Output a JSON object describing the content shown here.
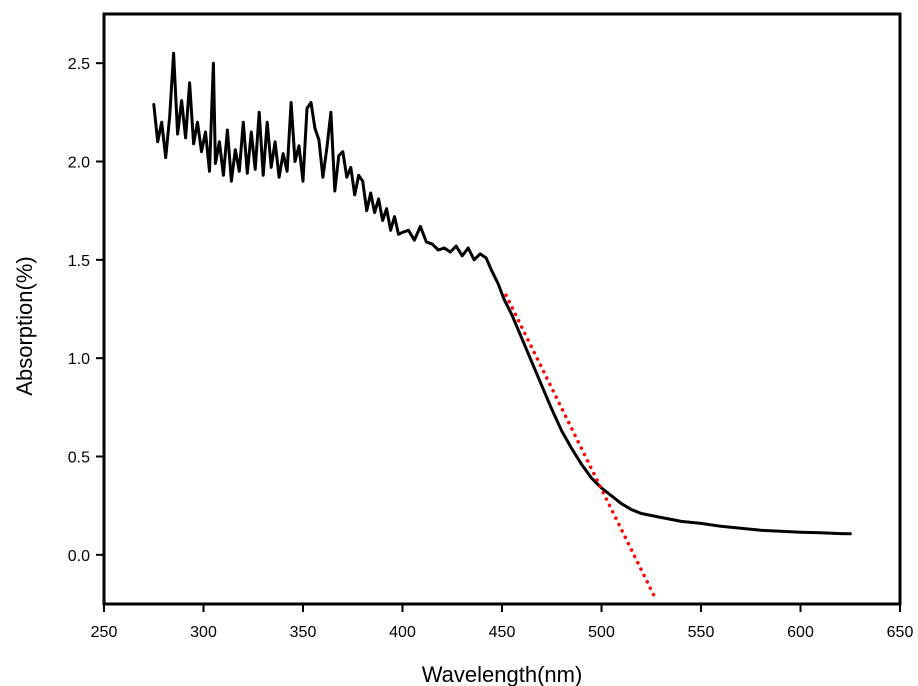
{
  "chart_data": {
    "type": "line",
    "title": "",
    "xlabel": "Wavelength(nm)",
    "ylabel": "Absorption(%)",
    "xlim": [
      250,
      650
    ],
    "ylim": [
      -0.25,
      2.75
    ],
    "x_ticks": [
      250,
      300,
      350,
      400,
      450,
      500,
      550,
      600,
      650
    ],
    "x_tick_labels": [
      "250",
      "300",
      "350",
      "400",
      "450",
      "500",
      "550",
      "600",
      "650"
    ],
    "y_ticks": [
      0.0,
      0.5,
      1.0,
      1.5,
      2.0,
      2.5
    ],
    "y_tick_labels": [
      "0.0",
      "0.5",
      "1.0",
      "1.5",
      "2.0",
      "2.5"
    ],
    "grid": false,
    "legend": "none",
    "series": [
      {
        "color": "#000000",
        "style": "solid",
        "x": [
          275,
          277,
          279,
          281,
          283,
          285,
          287,
          289,
          291,
          293,
          295,
          297,
          299,
          301,
          303,
          305,
          306,
          308,
          310,
          312,
          314,
          316,
          318,
          320,
          322,
          324,
          326,
          328,
          330,
          332,
          334,
          336,
          338,
          340,
          342,
          344,
          346,
          348,
          350,
          352,
          354,
          356,
          358,
          360,
          362,
          364,
          366,
          368,
          370,
          372,
          374,
          376,
          378,
          380,
          382,
          384,
          386,
          388,
          390,
          392,
          394,
          396,
          398,
          400,
          403,
          406,
          409,
          412,
          415,
          418,
          421,
          424,
          427,
          430,
          433,
          436,
          439,
          442,
          445,
          448,
          451,
          455,
          460,
          465,
          470,
          475,
          480,
          485,
          490,
          495,
          500,
          505,
          510,
          515,
          520,
          525,
          530,
          535,
          540,
          545,
          550,
          560,
          570,
          580,
          590,
          600,
          610,
          620,
          625
        ],
        "values": [
          2.29,
          2.1,
          2.2,
          2.02,
          2.23,
          2.55,
          2.14,
          2.31,
          2.12,
          2.4,
          2.09,
          2.2,
          2.05,
          2.15,
          1.95,
          2.5,
          1.99,
          2.1,
          1.93,
          2.16,
          1.9,
          2.06,
          1.95,
          2.2,
          1.94,
          2.15,
          1.96,
          2.25,
          1.93,
          2.2,
          1.97,
          2.1,
          1.92,
          2.04,
          1.95,
          2.3,
          2.0,
          2.08,
          1.9,
          2.27,
          2.3,
          2.17,
          2.11,
          1.92,
          2.07,
          2.25,
          1.85,
          2.03,
          2.05,
          1.92,
          1.97,
          1.83,
          1.93,
          1.9,
          1.75,
          1.84,
          1.74,
          1.81,
          1.7,
          1.76,
          1.65,
          1.72,
          1.63,
          1.64,
          1.65,
          1.6,
          1.67,
          1.59,
          1.58,
          1.55,
          1.56,
          1.54,
          1.57,
          1.52,
          1.56,
          1.5,
          1.53,
          1.51,
          1.44,
          1.38,
          1.3,
          1.22,
          1.1,
          0.98,
          0.86,
          0.74,
          0.63,
          0.54,
          0.46,
          0.39,
          0.34,
          0.3,
          0.26,
          0.23,
          0.21,
          0.2,
          0.19,
          0.18,
          0.17,
          0.165,
          0.16,
          0.145,
          0.135,
          0.125,
          0.12,
          0.115,
          0.112,
          0.108,
          0.107
        ]
      },
      {
        "color": "#ff0000",
        "style": "dotted",
        "x": [
          452,
          527
        ],
        "values": [
          1.32,
          -0.22
        ]
      }
    ]
  }
}
